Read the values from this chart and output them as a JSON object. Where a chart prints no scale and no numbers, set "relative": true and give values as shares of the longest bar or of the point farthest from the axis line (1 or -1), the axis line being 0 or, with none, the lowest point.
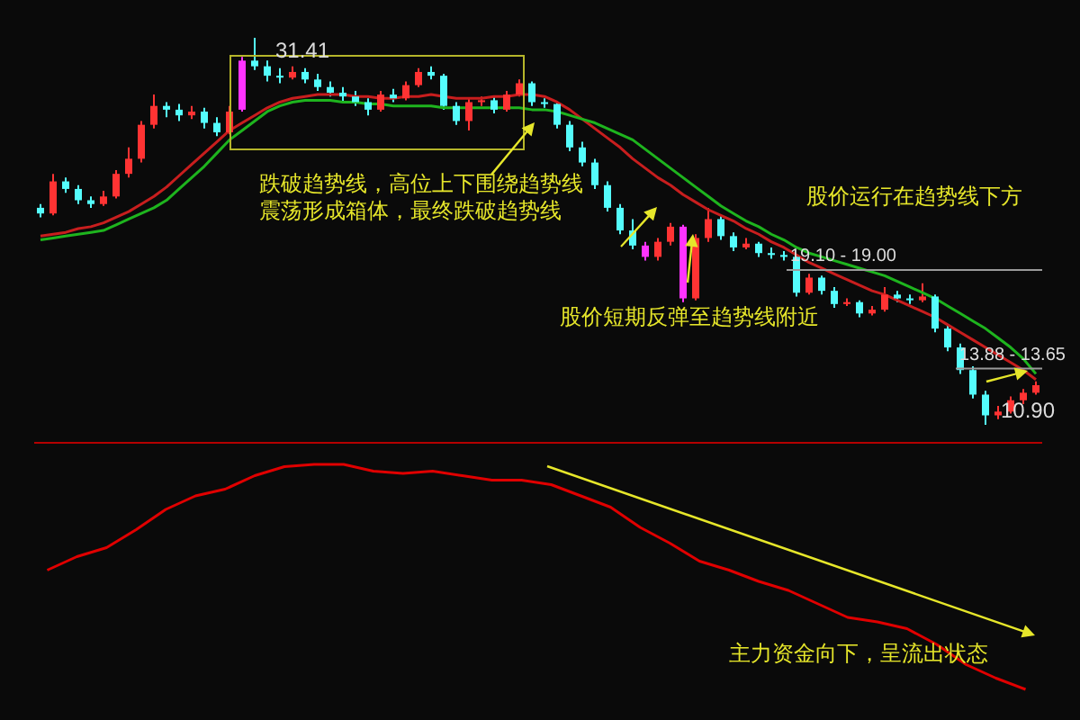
{
  "chart_data": [
    {
      "type": "candlestick",
      "categories": [
        null,
        null,
        null,
        null,
        null,
        null,
        null,
        null,
        null,
        null,
        null,
        null,
        null,
        null,
        null,
        null,
        null,
        null,
        null,
        null,
        null,
        null,
        null,
        null,
        null,
        null,
        null,
        null,
        null,
        null,
        null,
        null,
        null,
        null,
        null,
        null,
        null,
        null,
        null,
        null,
        null,
        null,
        null,
        null,
        null,
        null,
        null,
        null,
        null,
        null,
        null,
        null,
        null,
        null,
        null,
        null,
        null,
        null,
        null,
        null,
        null,
        null,
        null,
        null,
        null,
        null,
        null,
        null,
        null,
        null,
        null,
        null,
        null,
        null,
        null,
        null,
        null,
        null,
        null,
        null
      ],
      "ohlc": [
        [
          22.4,
          22.6,
          21.9,
          22.1
        ],
        [
          22.1,
          24.2,
          22.0,
          23.8
        ],
        [
          23.8,
          24.0,
          23.2,
          23.4
        ],
        [
          23.4,
          23.6,
          22.6,
          22.8
        ],
        [
          22.8,
          23.0,
          22.4,
          22.6
        ],
        [
          22.6,
          23.3,
          22.5,
          23.0
        ],
        [
          23.0,
          24.4,
          22.9,
          24.2
        ],
        [
          24.2,
          25.6,
          24.0,
          25.0
        ],
        [
          25.0,
          27.0,
          24.8,
          26.8
        ],
        [
          26.8,
          28.4,
          26.6,
          27.8
        ],
        [
          27.8,
          28.0,
          27.2,
          27.6
        ],
        [
          27.6,
          27.9,
          27.0,
          27.3
        ],
        [
          27.3,
          27.8,
          27.1,
          27.5
        ],
        [
          27.5,
          27.7,
          26.6,
          26.9
        ],
        [
          26.9,
          27.2,
          26.2,
          26.4
        ],
        [
          26.4,
          27.8,
          26.3,
          27.5
        ],
        [
          27.6,
          30.4,
          27.5,
          30.2
        ],
        [
          30.2,
          31.41,
          29.7,
          29.9
        ],
        [
          29.9,
          30.2,
          29.1,
          29.4
        ],
        [
          29.4,
          29.8,
          29.0,
          29.3
        ],
        [
          29.3,
          29.9,
          29.2,
          29.6
        ],
        [
          29.6,
          29.8,
          29.0,
          29.2
        ],
        [
          29.2,
          29.5,
          28.6,
          28.8
        ],
        [
          28.8,
          29.1,
          28.3,
          28.5
        ],
        [
          28.5,
          28.8,
          28.0,
          28.3
        ],
        [
          28.3,
          28.6,
          27.8,
          28.0
        ],
        [
          28.0,
          28.2,
          27.3,
          27.6
        ],
        [
          27.6,
          28.6,
          27.5,
          28.4
        ],
        [
          28.4,
          28.7,
          28.0,
          28.2
        ],
        [
          28.2,
          29.1,
          28.1,
          28.9
        ],
        [
          28.9,
          29.8,
          28.8,
          29.6
        ],
        [
          29.6,
          29.9,
          29.2,
          29.4
        ],
        [
          29.4,
          29.5,
          27.6,
          27.8
        ],
        [
          27.8,
          28.0,
          26.8,
          27.0
        ],
        [
          27.0,
          28.2,
          26.5,
          28.0
        ],
        [
          28.0,
          28.3,
          27.8,
          28.1
        ],
        [
          28.1,
          28.3,
          27.4,
          27.6
        ],
        [
          27.6,
          28.6,
          27.5,
          28.4
        ],
        [
          28.4,
          29.2,
          28.3,
          29.0
        ],
        [
          29.0,
          29.1,
          27.8,
          28.0
        ],
        [
          28.0,
          28.2,
          27.7,
          27.9
        ],
        [
          27.9,
          28.0,
          26.6,
          26.8
        ],
        [
          26.8,
          27.0,
          25.4,
          25.6
        ],
        [
          25.6,
          25.9,
          24.6,
          24.8
        ],
        [
          24.8,
          25.0,
          23.4,
          23.6
        ],
        [
          23.6,
          23.8,
          22.2,
          22.4
        ],
        [
          22.4,
          22.6,
          21.0,
          21.2
        ],
        [
          21.2,
          21.8,
          20.2,
          20.4
        ],
        [
          20.4,
          20.6,
          19.6,
          19.8
        ],
        [
          19.8,
          20.8,
          19.6,
          20.6
        ],
        [
          20.6,
          21.6,
          20.4,
          21.4
        ],
        [
          21.4,
          21.5,
          17.4,
          17.6
        ],
        [
          17.6,
          21.0,
          17.5,
          20.8
        ],
        [
          20.8,
          22.4,
          20.6,
          21.8
        ],
        [
          21.8,
          22.0,
          20.7,
          20.9
        ],
        [
          20.9,
          21.1,
          20.1,
          20.3
        ],
        [
          20.3,
          20.8,
          20.2,
          20.5
        ],
        [
          20.5,
          20.6,
          19.8,
          20.0
        ],
        [
          20.0,
          20.3,
          19.7,
          19.9
        ],
        [
          19.9,
          20.1,
          19.6,
          19.8
        ],
        [
          19.8,
          19.9,
          17.7,
          17.9
        ],
        [
          17.9,
          18.9,
          17.8,
          18.7
        ],
        [
          18.7,
          18.8,
          17.8,
          18.0
        ],
        [
          18.0,
          18.2,
          17.1,
          17.3
        ],
        [
          17.3,
          17.6,
          17.2,
          17.4
        ],
        [
          17.4,
          17.5,
          16.6,
          16.8
        ],
        [
          16.8,
          17.2,
          16.7,
          17.0
        ],
        [
          17.0,
          18.2,
          16.9,
          17.8
        ],
        [
          17.8,
          18.0,
          17.4,
          17.6
        ],
        [
          17.6,
          17.8,
          17.3,
          17.5
        ],
        [
          17.5,
          18.4,
          17.4,
          17.7
        ],
        [
          17.7,
          17.8,
          15.8,
          16.0
        ],
        [
          16.0,
          16.2,
          14.8,
          15.0
        ],
        [
          15.0,
          15.2,
          13.6,
          13.8
        ],
        [
          13.8,
          14.0,
          12.3,
          12.5
        ],
        [
          12.5,
          12.7,
          10.9,
          11.4
        ],
        [
          11.4,
          11.9,
          11.2,
          11.6
        ],
        [
          11.6,
          12.4,
          11.5,
          12.2
        ],
        [
          12.2,
          12.8,
          12.0,
          12.6
        ],
        [
          12.6,
          13.2,
          12.5,
          13.0
        ]
      ],
      "colors": [
        "#54fcfc",
        "#ff3333",
        "#54fcfc",
        "#54fcfc",
        "#54fcfc",
        "#ff3333",
        "#ff3333",
        "#ff3333",
        "#ff3333",
        "#ff3333",
        "#54fcfc",
        "#54fcfc",
        "#ff3333",
        "#54fcfc",
        "#54fcfc",
        "#ff3333",
        "#ff33ff",
        "#54fcfc",
        "#54fcfc",
        "#54fcfc",
        "#ff3333",
        "#54fcfc",
        "#54fcfc",
        "#54fcfc",
        "#54fcfc",
        "#54fcfc",
        "#54fcfc",
        "#ff3333",
        "#54fcfc",
        "#ff3333",
        "#ff3333",
        "#54fcfc",
        "#54fcfc",
        "#54fcfc",
        "#ff3333",
        "#ff3333",
        "#54fcfc",
        "#ff3333",
        "#ff3333",
        "#54fcfc",
        "#54fcfc",
        "#54fcfc",
        "#54fcfc",
        "#54fcfc",
        "#54fcfc",
        "#54fcfc",
        "#54fcfc",
        "#54fcfc",
        "#ff33ff",
        "#ff3333",
        "#ff3333",
        "#ff33ff",
        "#ff3333",
        "#ff3333",
        "#54fcfc",
        "#54fcfc",
        "#ff3333",
        "#54fcfc",
        "#54fcfc",
        "#54fcfc",
        "#54fcfc",
        "#ff3333",
        "#54fcfc",
        "#54fcfc",
        "#ff3333",
        "#54fcfc",
        "#ff3333",
        "#ff3333",
        "#54fcfc",
        "#54fcfc",
        "#ff3333",
        "#54fcfc",
        "#54fcfc",
        "#54fcfc",
        "#54fcfc",
        "#54fcfc",
        "#ff3333",
        "#ff3333",
        "#ff3333",
        "#ff3333"
      ],
      "series": [
        {
          "type": "line",
          "color": "#c81e1e",
          "values": [
            20.9,
            21.0,
            21.1,
            21.3,
            21.4,
            21.6,
            21.9,
            22.2,
            22.6,
            23.0,
            23.5,
            24.1,
            24.7,
            25.3,
            25.9,
            26.5,
            26.9,
            27.3,
            27.7,
            28.0,
            28.2,
            28.3,
            28.4,
            28.4,
            28.4,
            28.3,
            28.3,
            28.2,
            28.2,
            28.3,
            28.3,
            28.4,
            28.3,
            28.2,
            28.2,
            28.2,
            28.3,
            28.3,
            28.4,
            28.4,
            28.3,
            28.0,
            27.6,
            27.1,
            26.6,
            26.1,
            25.6,
            25.0,
            24.5,
            24.0,
            23.6,
            23.1,
            22.7,
            22.3,
            22.0,
            21.7,
            21.3,
            21.0,
            20.6,
            20.3,
            19.9,
            19.5,
            19.2,
            18.9,
            18.6,
            18.3,
            18.0,
            17.8,
            17.5,
            17.2,
            16.9,
            16.6,
            16.2,
            15.8,
            15.4,
            15.0,
            14.6,
            14.2,
            13.8,
            13.3
          ]
        },
        {
          "type": "line",
          "color": "#1eb41e",
          "values": [
            20.7,
            20.8,
            20.9,
            21.0,
            21.1,
            21.2,
            21.5,
            21.8,
            22.1,
            22.4,
            22.8,
            23.4,
            24.0,
            24.6,
            25.3,
            26.0,
            26.5,
            27.0,
            27.5,
            27.8,
            28.0,
            28.1,
            28.1,
            28.1,
            28.0,
            28.0,
            27.9,
            27.9,
            27.8,
            27.8,
            27.8,
            27.8,
            27.7,
            27.7,
            27.7,
            27.7,
            27.7,
            27.7,
            27.7,
            27.6,
            27.6,
            27.5,
            27.3,
            27.1,
            26.9,
            26.6,
            26.3,
            26.0,
            25.5,
            25.0,
            24.5,
            24.0,
            23.5,
            23.0,
            22.5,
            22.1,
            21.7,
            21.4,
            21.0,
            20.7,
            20.3,
            20.0,
            19.8,
            19.6,
            19.4,
            19.2,
            19.0,
            18.8,
            18.5,
            18.2,
            17.9,
            17.6,
            17.2,
            16.8,
            16.4,
            16.0,
            15.5,
            15.0,
            14.4,
            13.6
          ]
        }
      ],
      "ref_lines": [
        {
          "axis": "y",
          "value": 19.1,
          "label": "19.10 - 19.00",
          "color": "#9a9a9a"
        },
        {
          "axis": "y",
          "value": 13.88,
          "label": "13.88 - 13.65",
          "color": "#9a9a9a"
        }
      ],
      "annotations": [
        "31.41",
        "跌破趋势线，高位上下围绕趋势线",
        "震荡形成箱体，最终跌破趋势线",
        "股价运行在趋势线下方",
        "股价短期反弹至趋势线附近",
        "10.90"
      ]
    },
    {
      "type": "line",
      "relative": true,
      "categories": [
        null,
        null,
        null,
        null,
        null,
        null,
        null,
        null,
        null,
        null,
        null,
        null,
        null,
        null,
        null,
        null,
        null,
        null,
        null,
        null,
        null,
        null,
        null,
        null,
        null,
        null,
        null,
        null,
        null,
        null,
        null,
        null,
        null,
        null
      ],
      "series": [
        {
          "color": "#e00000",
          "values": [
            0.53,
            0.59,
            0.63,
            0.71,
            0.8,
            0.86,
            0.89,
            0.95,
            0.99,
            1.0,
            1.0,
            0.97,
            0.96,
            0.97,
            0.95,
            0.93,
            0.93,
            0.91,
            0.86,
            0.81,
            0.72,
            0.65,
            0.57,
            0.53,
            0.48,
            0.44,
            0.38,
            0.32,
            0.3,
            0.27,
            0.2,
            0.11,
            0.05,
            0
          ]
        }
      ],
      "annotations": [
        "主力资金向下，呈流出状态"
      ]
    }
  ]
}
